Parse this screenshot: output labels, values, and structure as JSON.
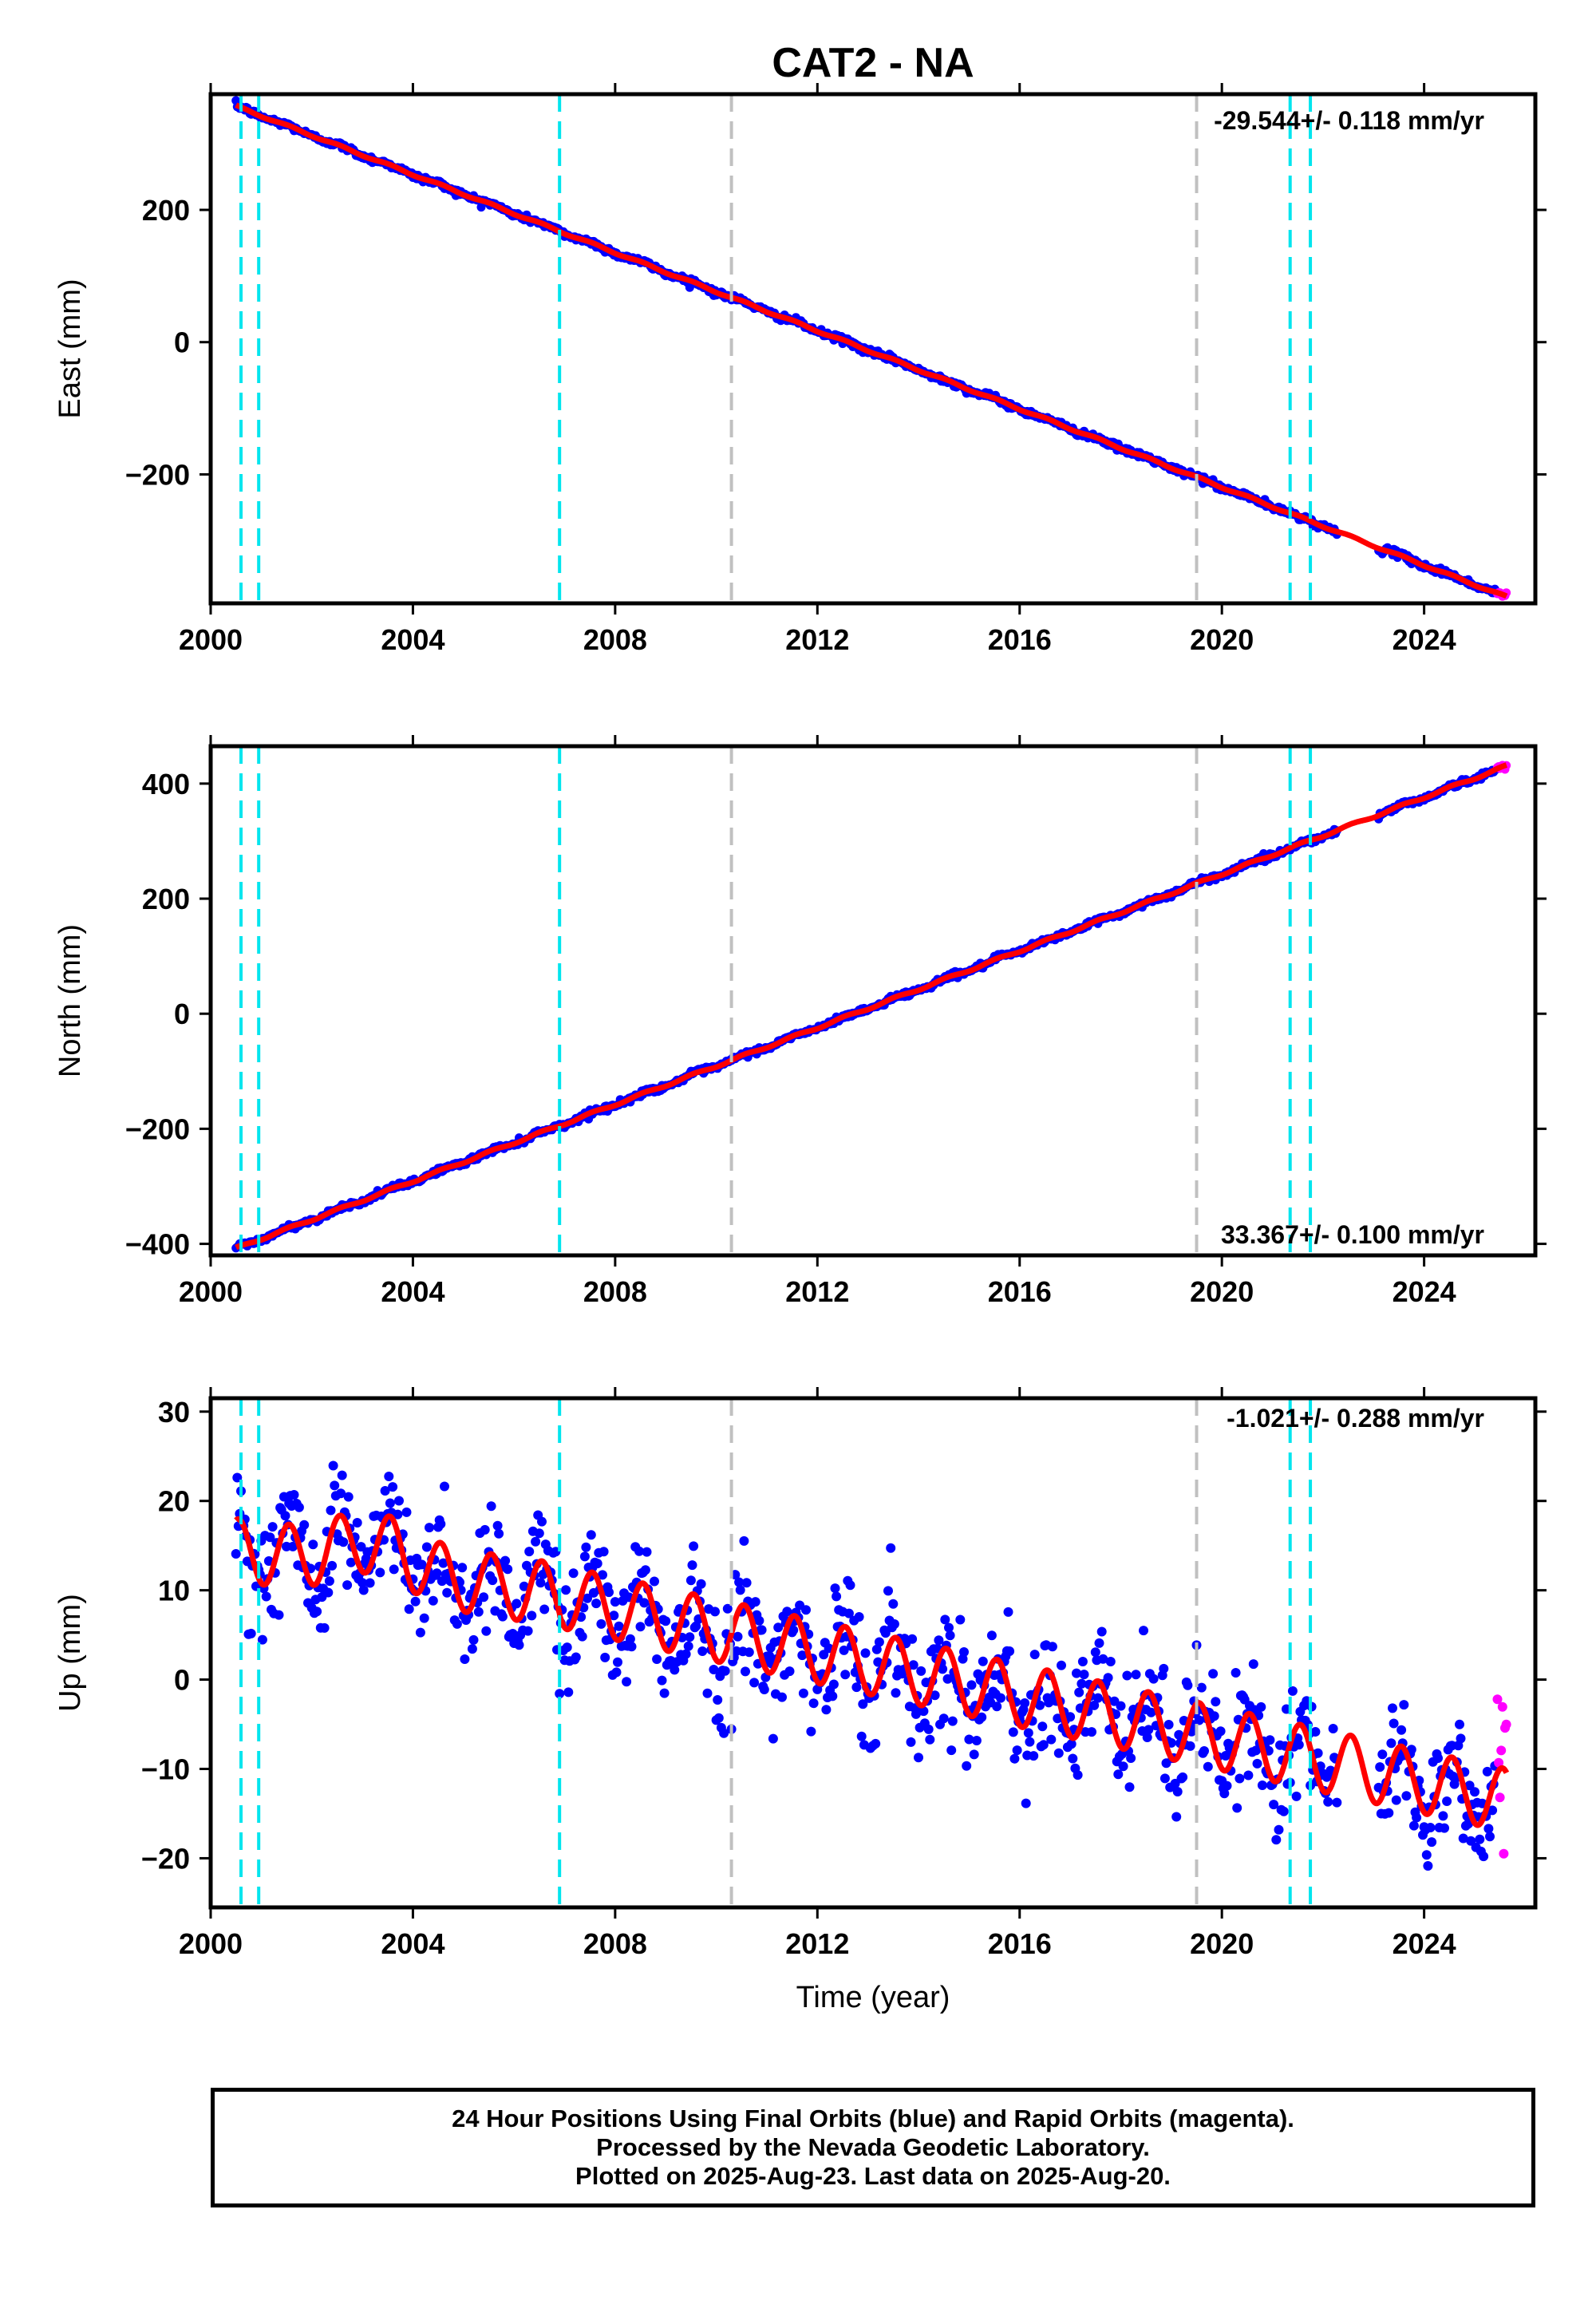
{
  "title": "CAT2 - NA",
  "xlabel": "Time (year)",
  "colors": {
    "final": "#0000ff",
    "rapid": "#ff00ff",
    "model": "#ff0000",
    "equipment_change": "#00e5ee",
    "other_event": "#c0c0c0"
  },
  "footer": {
    "line1": "24 Hour Positions Using Final Orbits (blue) and Rapid Orbits (magenta).",
    "line2": "Processed by the Nevada Geodetic Laboratory.",
    "line3": "Plotted on 2025-Aug-23. Last data on 2025-Aug-20."
  },
  "chart_data": [
    {
      "type": "scatter",
      "name": "east",
      "ylabel": "East (mm)",
      "rate_label": "-29.544+/- 0.118 mm/yr",
      "xlim": [
        2000,
        2026.2
      ],
      "ylim": [
        -395,
        375
      ],
      "xticks": [
        "2000",
        "2004",
        "2008",
        "2012",
        "2016",
        "2020",
        "2024"
      ],
      "yticks": [
        "200",
        "0",
        "−200"
      ],
      "ytick_values": [
        200,
        0,
        -200
      ],
      "trend": {
        "intercept_at_2000_5": 357,
        "slope_mm_per_yr": -29.544
      },
      "seasonal_amplitude": 1.5,
      "noise_sd": 2.5,
      "data_start": 2000.5,
      "data_end": 2025.63,
      "gap": [
        2022.3,
        2023.1
      ],
      "rapid_from": 2025.45,
      "equipment_changes": [
        2000.6,
        2000.95,
        2006.9,
        2021.35,
        2021.75
      ],
      "other_events": [
        2010.3,
        2019.5
      ]
    },
    {
      "type": "scatter",
      "name": "north",
      "ylabel": "North (mm)",
      "rate_label": "33.367+/- 0.100 mm/yr",
      "xlim": [
        2000,
        2026.2
      ],
      "ylim": [
        -420,
        465
      ],
      "xticks": [
        "2000",
        "2004",
        "2008",
        "2012",
        "2016",
        "2020",
        "2024"
      ],
      "yticks": [
        "400",
        "200",
        "0",
        "−200",
        "−400"
      ],
      "ytick_values": [
        400,
        200,
        0,
        -200,
        -400
      ],
      "trend": {
        "intercept_at_2000_5": -408,
        "slope_mm_per_yr": 33.367
      },
      "seasonal_amplitude": 2,
      "noise_sd": 2.5,
      "data_start": 2000.5,
      "data_end": 2025.63,
      "gap": [
        2022.3,
        2023.1
      ],
      "rapid_from": 2025.45,
      "equipment_changes": [
        2000.6,
        2000.95,
        2006.9,
        2021.35,
        2021.75
      ],
      "other_events": [
        2010.3,
        2019.5
      ]
    },
    {
      "type": "scatter",
      "name": "up",
      "ylabel": "Up (mm)",
      "rate_label": "-1.021+/- 0.288 mm/yr",
      "xlim": [
        2000,
        2026.2
      ],
      "ylim": [
        -25.5,
        31.5
      ],
      "xticks": [
        "2000",
        "2004",
        "2008",
        "2012",
        "2016",
        "2020",
        "2024"
      ],
      "yticks": [
        "30",
        "20",
        "10",
        "0",
        "−10",
        "−20"
      ],
      "ytick_values": [
        30,
        20,
        10,
        0,
        -10,
        -20
      ],
      "model_segments": [
        {
          "from": 2000.5,
          "to": 2006.9,
          "base_start": 14.5,
          "base_end": 9.5,
          "hump_center": 2003.2,
          "hump_height": 3.0
        },
        {
          "from": 2006.9,
          "to": 2025.63,
          "base_start": 9.3,
          "base_end": -13.5
        }
      ],
      "seasonal_amplitude": 3.5,
      "noise_sd": 3.3,
      "data_start": 2000.5,
      "data_end": 2025.63,
      "gap": [
        2022.3,
        2023.1
      ],
      "rapid_from": 2025.45,
      "equipment_changes": [
        2000.6,
        2000.95,
        2006.9,
        2021.35,
        2021.75
      ],
      "other_events": [
        2010.3,
        2019.5
      ]
    }
  ]
}
